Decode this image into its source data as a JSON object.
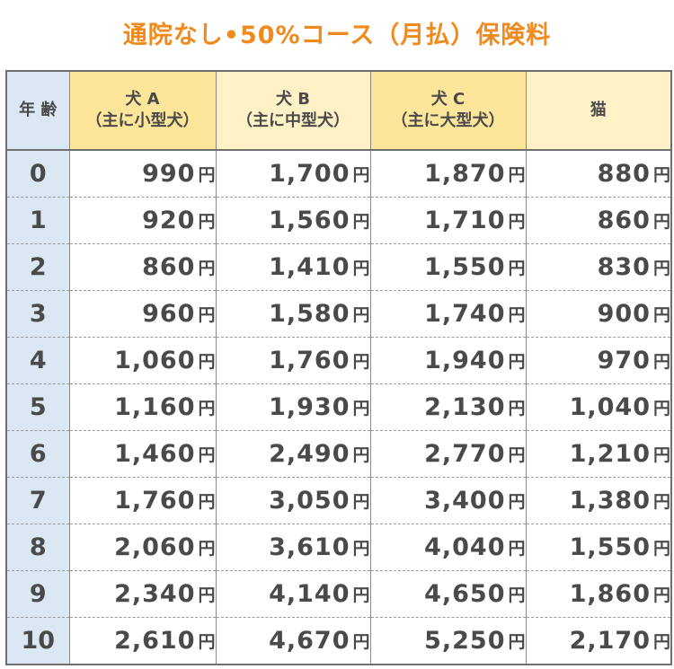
{
  "title": "通院なし•50%コース（月払）保険料",
  "table": {
    "headers": {
      "age": "年 齢",
      "dog_a_line1": "犬 A",
      "dog_a_line2": "（主に小型犬）",
      "dog_b_line1": "犬 B",
      "dog_b_line2": "（主に中型犬）",
      "dog_c_line1": "犬 C",
      "dog_c_line2": "（主に大型犬）",
      "cat": "猫"
    },
    "unit": "円",
    "rows": [
      {
        "age": "0",
        "a": "990",
        "b": "1,700",
        "c": "1,870",
        "cat": "880"
      },
      {
        "age": "1",
        "a": "920",
        "b": "1,560",
        "c": "1,710",
        "cat": "860"
      },
      {
        "age": "2",
        "a": "860",
        "b": "1,410",
        "c": "1,550",
        "cat": "830"
      },
      {
        "age": "3",
        "a": "960",
        "b": "1,580",
        "c": "1,740",
        "cat": "900"
      },
      {
        "age": "4",
        "a": "1,060",
        "b": "1,760",
        "c": "1,940",
        "cat": "970"
      },
      {
        "age": "5",
        "a": "1,160",
        "b": "1,930",
        "c": "2,130",
        "cat": "1,040"
      },
      {
        "age": "6",
        "a": "1,460",
        "b": "2,490",
        "c": "2,770",
        "cat": "1,210"
      },
      {
        "age": "7",
        "a": "1,760",
        "b": "3,050",
        "c": "3,400",
        "cat": "1,380"
      },
      {
        "age": "8",
        "a": "2,060",
        "b": "3,610",
        "c": "4,040",
        "cat": "1,550"
      },
      {
        "age": "9",
        "a": "2,340",
        "b": "4,140",
        "c": "4,650",
        "cat": "1,860"
      },
      {
        "age": "10",
        "a": "2,610",
        "b": "4,670",
        "c": "5,250",
        "cat": "2,170"
      }
    ]
  },
  "colors": {
    "title": "#f08a1c",
    "age_column_bg": "#dbe8f4",
    "header_dark_yellow": "#fde59a",
    "header_light_yellow": "#fdf1c5",
    "text": "#4a4a4a"
  }
}
